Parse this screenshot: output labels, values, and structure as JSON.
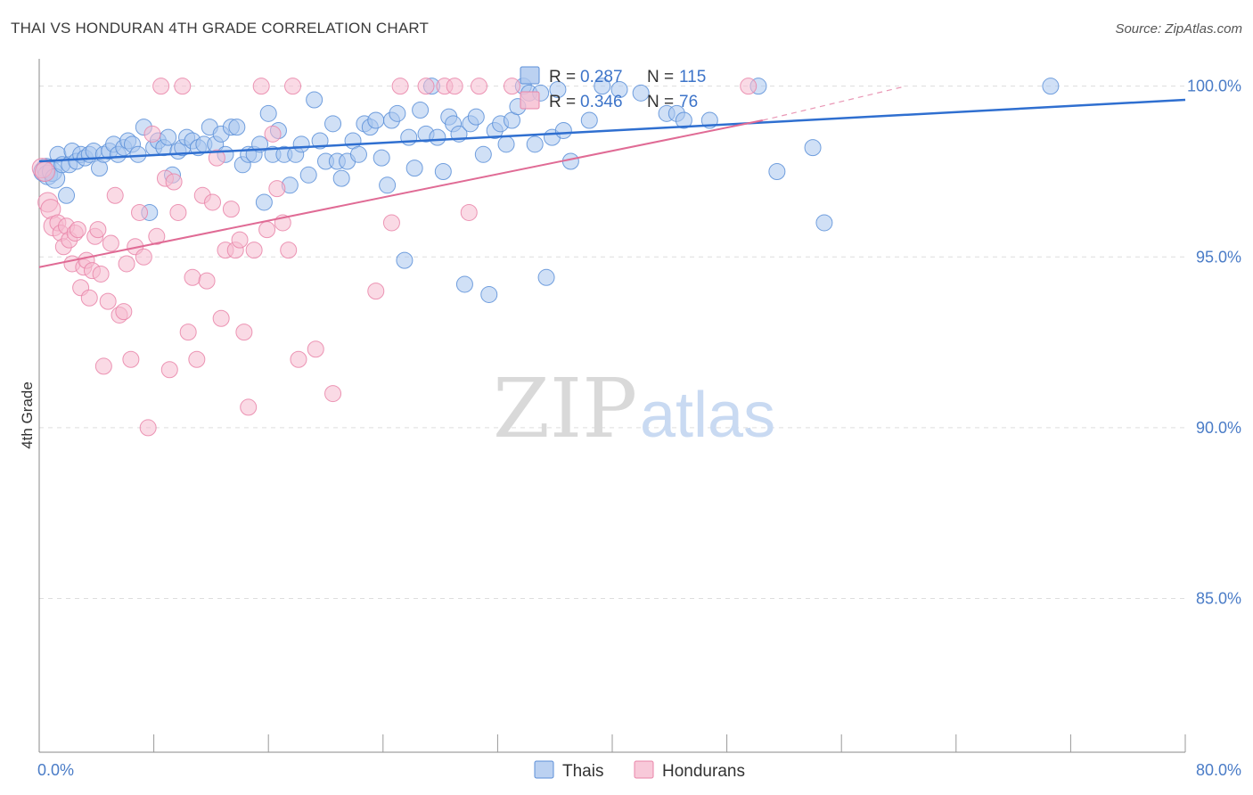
{
  "header": {
    "title": "THAI VS HONDURAN 4TH GRADE CORRELATION CHART",
    "source": "Source: ZipAtlas.com"
  },
  "legend_top": {
    "rows": [
      {
        "r_label": "R = ",
        "r_value": "0.287",
        "n_label": "N = ",
        "n_value": "115",
        "fill": "#aac6ee",
        "stroke": "#5b8fd8"
      },
      {
        "r_label": "R = ",
        "r_value": "0.346",
        "n_label": "N = ",
        "n_value": "76",
        "fill": "#f6bcd0",
        "stroke": "#e984a8"
      }
    ]
  },
  "legend_bottom": {
    "items": [
      {
        "label": "Thais",
        "fill": "#aac6ee",
        "stroke": "#5b8fd8"
      },
      {
        "label": "Hondurans",
        "fill": "#f6bcd0",
        "stroke": "#e984a8"
      }
    ]
  },
  "watermark": {
    "zip": "ZIP",
    "atlas": "atlas"
  },
  "chart_data": {
    "type": "scatter",
    "title": "THAI VS HONDURAN 4TH GRADE CORRELATION CHART",
    "xlabel": "",
    "ylabel": "4th Grade",
    "xlim": [
      0,
      80
    ],
    "ylim": [
      80.5,
      100.8
    ],
    "x_tick_labels": [
      {
        "value": 0,
        "label": "0.0%"
      },
      {
        "value": 80,
        "label": "80.0%"
      }
    ],
    "y_tick_labels": [
      {
        "value": 100,
        "label": "100.0%"
      },
      {
        "value": 95,
        "label": "95.0%"
      },
      {
        "value": 90,
        "label": "90.0%"
      },
      {
        "value": 85,
        "label": "85.0%"
      }
    ],
    "x_minor_ticks": [
      8,
      16,
      24,
      32,
      40,
      48,
      56,
      64,
      72,
      80
    ],
    "grid": true,
    "legend": "top-center",
    "series": [
      {
        "name": "Thais",
        "color": "#5b8fd8",
        "fill": "#aac6ee",
        "trend": {
          "x0": 0,
          "y0": 97.8,
          "x1": 80,
          "y1": 99.6
        },
        "points": [
          [
            0.3,
            97.5
          ],
          [
            0.5,
            97.6
          ],
          [
            0.6,
            97.4
          ],
          [
            0.9,
            97.5
          ],
          [
            1.1,
            97.3
          ],
          [
            1.3,
            98.0
          ],
          [
            1.6,
            97.7
          ],
          [
            1.9,
            96.8
          ],
          [
            2.1,
            97.7
          ],
          [
            2.3,
            98.1
          ],
          [
            2.6,
            97.8
          ],
          [
            2.9,
            98.0
          ],
          [
            3.2,
            97.9
          ],
          [
            3.5,
            98.0
          ],
          [
            3.8,
            98.1
          ],
          [
            4.2,
            97.6
          ],
          [
            4.5,
            98.0
          ],
          [
            4.9,
            98.1
          ],
          [
            5.2,
            98.3
          ],
          [
            5.5,
            98.0
          ],
          [
            5.9,
            98.2
          ],
          [
            6.2,
            98.4
          ],
          [
            6.5,
            98.3
          ],
          [
            6.9,
            98.0
          ],
          [
            7.3,
            98.8
          ],
          [
            7.7,
            96.3
          ],
          [
            8.0,
            98.2
          ],
          [
            8.3,
            98.4
          ],
          [
            8.7,
            98.2
          ],
          [
            9.0,
            98.5
          ],
          [
            9.3,
            97.4
          ],
          [
            9.7,
            98.1
          ],
          [
            10.0,
            98.2
          ],
          [
            10.3,
            98.5
          ],
          [
            10.7,
            98.4
          ],
          [
            11.1,
            98.2
          ],
          [
            11.5,
            98.3
          ],
          [
            11.9,
            98.8
          ],
          [
            12.3,
            98.3
          ],
          [
            12.7,
            98.6
          ],
          [
            13.0,
            98.0
          ],
          [
            13.4,
            98.8
          ],
          [
            13.8,
            98.8
          ],
          [
            14.2,
            97.7
          ],
          [
            14.6,
            98.0
          ],
          [
            15.0,
            98.0
          ],
          [
            15.4,
            98.3
          ],
          [
            15.7,
            96.6
          ],
          [
            16.0,
            99.2
          ],
          [
            16.3,
            98.0
          ],
          [
            16.7,
            98.7
          ],
          [
            17.1,
            98.0
          ],
          [
            17.5,
            97.1
          ],
          [
            17.9,
            98.0
          ],
          [
            18.3,
            98.3
          ],
          [
            18.8,
            97.4
          ],
          [
            19.2,
            99.6
          ],
          [
            19.6,
            98.4
          ],
          [
            20.0,
            97.8
          ],
          [
            20.5,
            98.9
          ],
          [
            20.8,
            97.8
          ],
          [
            21.1,
            97.3
          ],
          [
            21.5,
            97.8
          ],
          [
            21.9,
            98.4
          ],
          [
            22.3,
            98.0
          ],
          [
            22.7,
            98.9
          ],
          [
            23.1,
            98.8
          ],
          [
            23.5,
            99.0
          ],
          [
            23.9,
            97.9
          ],
          [
            24.3,
            97.1
          ],
          [
            24.6,
            99.0
          ],
          [
            25.0,
            99.2
          ],
          [
            25.5,
            94.9
          ],
          [
            25.8,
            98.5
          ],
          [
            26.2,
            97.6
          ],
          [
            26.6,
            99.3
          ],
          [
            27.0,
            98.6
          ],
          [
            27.4,
            100.0
          ],
          [
            27.8,
            98.5
          ],
          [
            28.2,
            97.5
          ],
          [
            28.6,
            99.1
          ],
          [
            28.9,
            98.9
          ],
          [
            29.3,
            98.6
          ],
          [
            29.7,
            94.2
          ],
          [
            30.1,
            98.9
          ],
          [
            30.5,
            99.1
          ],
          [
            31.0,
            98.0
          ],
          [
            31.4,
            93.9
          ],
          [
            31.8,
            98.7
          ],
          [
            32.2,
            98.9
          ],
          [
            32.6,
            98.3
          ],
          [
            33.0,
            99.0
          ],
          [
            33.4,
            99.4
          ],
          [
            33.8,
            100.0
          ],
          [
            34.2,
            99.8
          ],
          [
            34.6,
            98.3
          ],
          [
            35.0,
            99.8
          ],
          [
            35.4,
            94.4
          ],
          [
            35.8,
            98.5
          ],
          [
            36.2,
            99.9
          ],
          [
            36.6,
            98.7
          ],
          [
            37.1,
            97.8
          ],
          [
            38.4,
            99.0
          ],
          [
            39.3,
            100.0
          ],
          [
            40.5,
            99.9
          ],
          [
            42.0,
            99.8
          ],
          [
            43.8,
            99.2
          ],
          [
            44.5,
            99.2
          ],
          [
            45.0,
            99.0
          ],
          [
            46.8,
            99.0
          ],
          [
            50.2,
            100.0
          ],
          [
            51.5,
            97.5
          ],
          [
            54.0,
            98.2
          ],
          [
            54.8,
            96.0
          ],
          [
            70.6,
            100.0
          ]
        ]
      },
      {
        "name": "Hondurans",
        "color": "#e984a8",
        "fill": "#f6bcd0",
        "trend": {
          "x0": 0,
          "y0": 94.7,
          "x1": 50.5,
          "y1": 99.0
        },
        "trend_ext": {
          "x0": 50.5,
          "y0": 99.0,
          "x1": 60.5,
          "y1": 100.0
        },
        "points": [
          [
            0.2,
            97.6
          ],
          [
            0.4,
            97.5
          ],
          [
            0.6,
            96.6
          ],
          [
            0.8,
            96.4
          ],
          [
            1.0,
            95.9
          ],
          [
            1.3,
            96.0
          ],
          [
            1.5,
            95.7
          ],
          [
            1.7,
            95.3
          ],
          [
            1.9,
            95.9
          ],
          [
            2.1,
            95.5
          ],
          [
            2.3,
            94.8
          ],
          [
            2.5,
            95.7
          ],
          [
            2.7,
            95.8
          ],
          [
            2.9,
            94.1
          ],
          [
            3.1,
            94.7
          ],
          [
            3.3,
            94.9
          ],
          [
            3.5,
            93.8
          ],
          [
            3.7,
            94.6
          ],
          [
            3.9,
            95.6
          ],
          [
            4.1,
            95.8
          ],
          [
            4.3,
            94.5
          ],
          [
            4.5,
            91.8
          ],
          [
            4.8,
            93.7
          ],
          [
            5.0,
            95.4
          ],
          [
            5.3,
            96.8
          ],
          [
            5.6,
            93.3
          ],
          [
            5.9,
            93.4
          ],
          [
            6.1,
            94.8
          ],
          [
            6.4,
            92.0
          ],
          [
            6.7,
            95.3
          ],
          [
            7.0,
            96.3
          ],
          [
            7.3,
            95.0
          ],
          [
            7.6,
            90.0
          ],
          [
            7.9,
            98.6
          ],
          [
            8.2,
            95.6
          ],
          [
            8.5,
            100.0
          ],
          [
            8.8,
            97.3
          ],
          [
            9.1,
            91.7
          ],
          [
            9.4,
            97.2
          ],
          [
            9.7,
            96.3
          ],
          [
            10.0,
            100.0
          ],
          [
            10.4,
            92.8
          ],
          [
            10.7,
            94.4
          ],
          [
            11.0,
            92.0
          ],
          [
            11.4,
            96.8
          ],
          [
            11.7,
            94.3
          ],
          [
            12.1,
            96.6
          ],
          [
            12.4,
            97.9
          ],
          [
            12.7,
            93.2
          ],
          [
            13.0,
            95.2
          ],
          [
            13.4,
            96.4
          ],
          [
            13.7,
            95.2
          ],
          [
            14.0,
            95.5
          ],
          [
            14.3,
            92.8
          ],
          [
            14.6,
            90.6
          ],
          [
            15.0,
            95.2
          ],
          [
            15.5,
            100.0
          ],
          [
            15.9,
            95.8
          ],
          [
            16.3,
            98.6
          ],
          [
            16.6,
            97.0
          ],
          [
            17.0,
            96.0
          ],
          [
            17.4,
            95.2
          ],
          [
            17.7,
            100.0
          ],
          [
            18.1,
            92.0
          ],
          [
            19.3,
            92.3
          ],
          [
            20.5,
            91.0
          ],
          [
            23.5,
            94.0
          ],
          [
            24.6,
            96.0
          ],
          [
            25.2,
            100.0
          ],
          [
            27.0,
            100.0
          ],
          [
            28.3,
            100.0
          ],
          [
            29.0,
            100.0
          ],
          [
            30.0,
            96.3
          ],
          [
            30.7,
            100.0
          ],
          [
            33.0,
            100.0
          ],
          [
            49.5,
            100.0
          ]
        ]
      }
    ]
  }
}
